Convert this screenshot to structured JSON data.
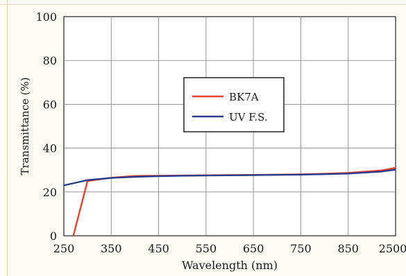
{
  "chart_data": {
    "type": "line",
    "xlabel": "Wavelength (nm)",
    "ylabel": "Transmittance (%)",
    "x_ticks": [
      "250",
      "350",
      "450",
      "550",
      "650",
      "750",
      "850",
      "2500"
    ],
    "y_ticks": [
      "0",
      "20",
      "40",
      "60",
      "80",
      "100"
    ],
    "ylim": [
      0,
      100
    ],
    "grid": true,
    "legend_position": "upper-middle",
    "series": [
      {
        "name": "BK7A",
        "color": "#e8402a",
        "points": [
          [
            270,
            0
          ],
          [
            300,
            25
          ],
          [
            350,
            26.5
          ],
          [
            400,
            27.3
          ],
          [
            450,
            27.4
          ],
          [
            500,
            27.5
          ],
          [
            550,
            27.6
          ],
          [
            600,
            27.7
          ],
          [
            650,
            27.8
          ],
          [
            700,
            27.9
          ],
          [
            750,
            28.0
          ],
          [
            800,
            28.3
          ],
          [
            850,
            28.7
          ],
          [
            2000,
            29.8
          ],
          [
            2500,
            31.0
          ]
        ]
      },
      {
        "name": "UV F.S.",
        "color": "#2a3c8c",
        "points": [
          [
            250,
            23
          ],
          [
            275,
            24.2
          ],
          [
            300,
            25.4
          ],
          [
            350,
            26.4
          ],
          [
            400,
            26.9
          ],
          [
            450,
            27.2
          ],
          [
            500,
            27.4
          ],
          [
            550,
            27.5
          ],
          [
            600,
            27.6
          ],
          [
            650,
            27.7
          ],
          [
            700,
            27.8
          ],
          [
            750,
            27.9
          ],
          [
            800,
            28.1
          ],
          [
            850,
            28.4
          ],
          [
            2000,
            29.3
          ],
          [
            2500,
            30.2
          ]
        ]
      }
    ]
  }
}
